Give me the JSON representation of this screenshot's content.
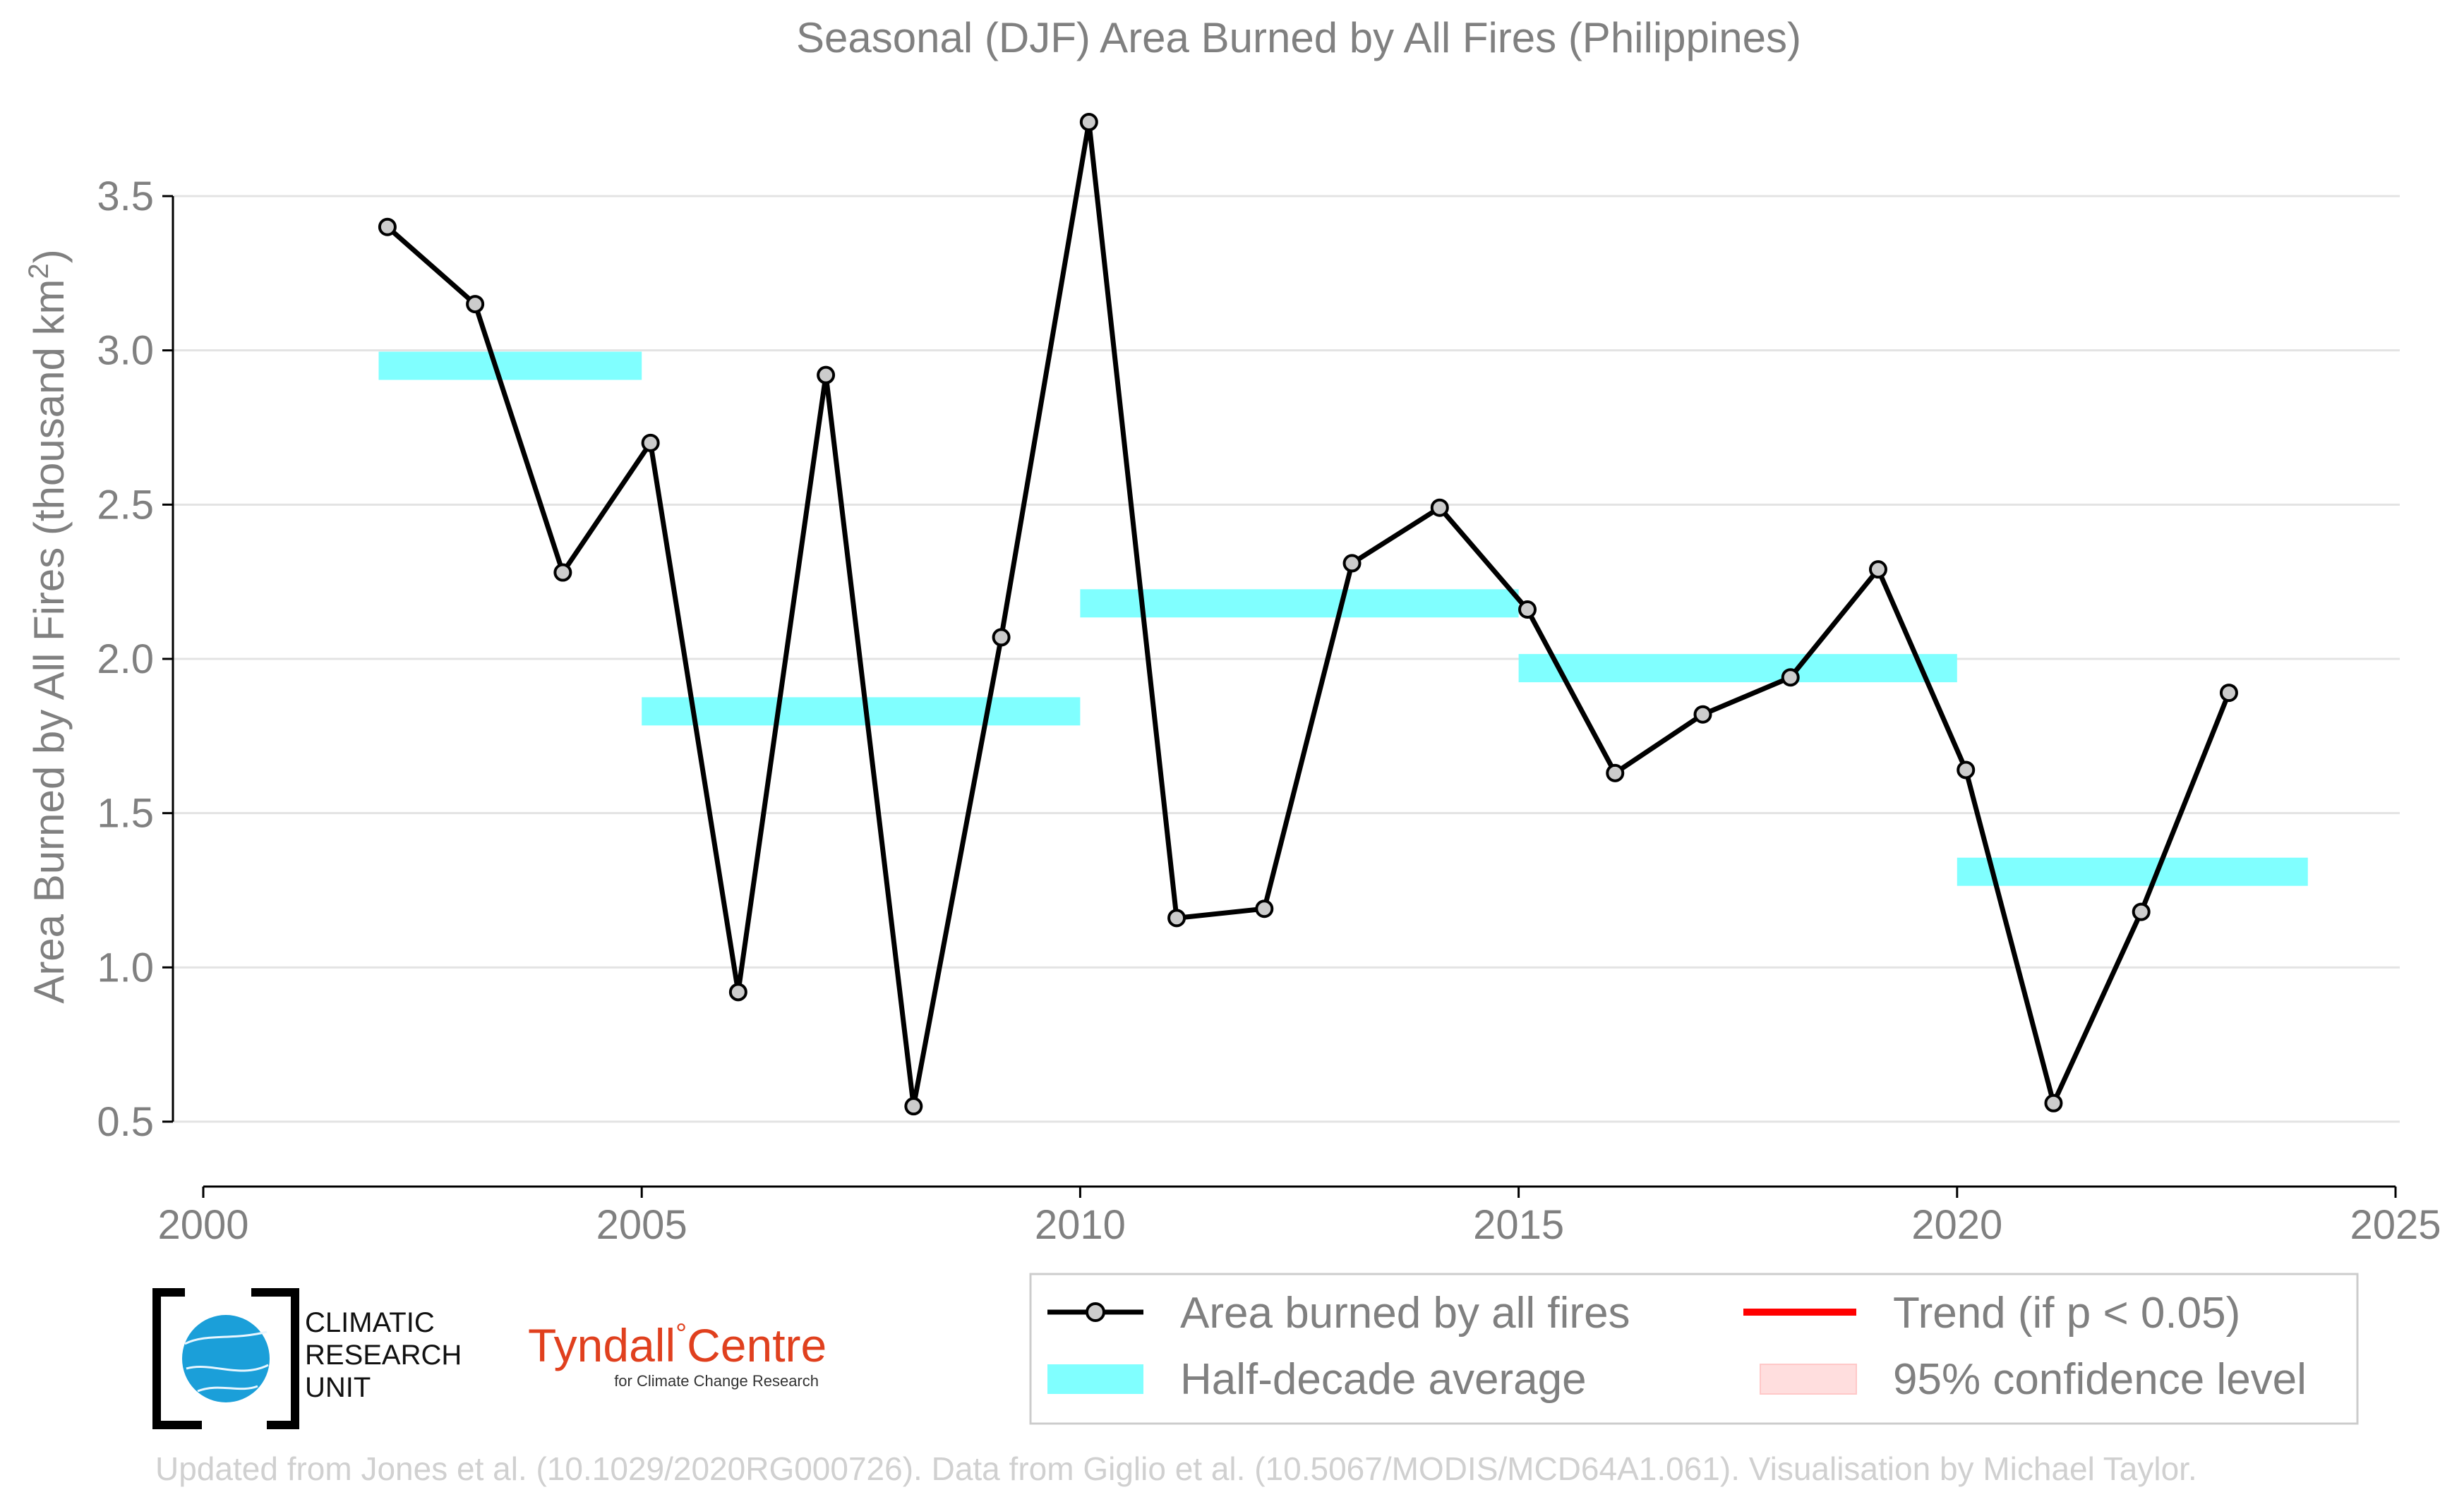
{
  "chart_data": {
    "type": "line",
    "title": "Seasonal (DJF) Area Burned by All Fires (Philippines)",
    "xlabel": "",
    "ylabel": "Area Burned by All Fires (thousand km",
    "ylabel_superscript": "2",
    "ylabel_suffix": ")",
    "xlim": [
      2000,
      2025
    ],
    "ylim": [
      0.5,
      3.5
    ],
    "x_ticks": [
      2000,
      2005,
      2010,
      2015,
      2020,
      2025
    ],
    "y_ticks": [
      0.5,
      1.0,
      1.5,
      2.0,
      2.5,
      3.0,
      3.5
    ],
    "y_tick_labels": [
      "0.5",
      "1.0",
      "1.5",
      "2.0",
      "2.5",
      "3.0",
      "3.5"
    ],
    "grid": true,
    "series": [
      {
        "name": "Area burned by all fires",
        "color": "#000000",
        "marker_fill": "#cccccc",
        "x": [
          2002.1,
          2003.1,
          2004.1,
          2005.1,
          2006.1,
          2007.1,
          2008.1,
          2009.1,
          2010.1,
          2011.1,
          2012.1,
          2013.1,
          2014.1,
          2015.1,
          2016.1,
          2017.1,
          2018.1,
          2019.1,
          2020.1,
          2021.1,
          2022.1,
          2023.1
        ],
        "values": [
          3.4,
          3.15,
          2.28,
          2.7,
          0.92,
          2.92,
          0.55,
          2.07,
          3.74,
          1.16,
          1.19,
          2.31,
          2.49,
          2.16,
          1.63,
          1.82,
          1.94,
          2.29,
          1.64,
          0.56,
          1.18,
          1.89
        ]
      }
    ],
    "half_decade_averages": {
      "name": "Half-decade average",
      "color": "#80ffff",
      "segments": [
        {
          "x0": 2002,
          "x1": 2005,
          "value": 2.95
        },
        {
          "x0": 2005,
          "x1": 2010,
          "value": 1.83
        },
        {
          "x0": 2010,
          "x1": 2015,
          "value": 2.18
        },
        {
          "x0": 2015,
          "x1": 2020,
          "value": 1.97
        },
        {
          "x0": 2020,
          "x1": 2024,
          "value": 1.31
        }
      ]
    },
    "legend": {
      "position": "bottom-right",
      "entries": [
        {
          "label": "Area burned by all fires",
          "kind": "line-marker",
          "color": "#000000"
        },
        {
          "label": "Trend (if p < 0.05)",
          "kind": "line",
          "color": "#ff0000"
        },
        {
          "label": "Half-decade average",
          "kind": "band",
          "color": "#80ffff"
        },
        {
          "label": "95% confidence level",
          "kind": "band",
          "color": "#ffdede"
        }
      ]
    }
  },
  "logos": {
    "cru": {
      "line1": "CLIMATIC",
      "line2": "RESEARCH",
      "line3": "UNIT"
    },
    "tyndall": {
      "name": "Tyndall",
      "degree": "°",
      "name2": "Centre",
      "subtitle": "for Climate Change Research"
    }
  },
  "credits": "Updated from Jones et al. (10.1029/2020RG000726). Data from Giglio et al. (10.5067/MODIS/MCD64A1.061). Visualisation by Michael Taylor."
}
